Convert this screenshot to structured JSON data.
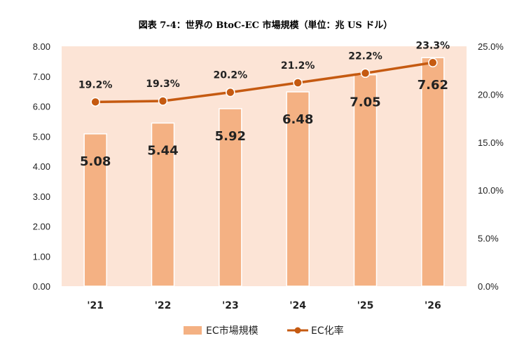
{
  "chart_data": {
    "type": "bar+line",
    "title": "図表 7-4：世界の BtoC-EC 市場規模（単位：兆 US ドル）",
    "categories": [
      "'21",
      "'22",
      "'23",
      "'24",
      "'25",
      "'26"
    ],
    "series": [
      {
        "name": "EC市場規模",
        "type": "bar",
        "axis": "left",
        "values": [
          5.08,
          5.44,
          5.92,
          6.48,
          7.05,
          7.62
        ],
        "labels": [
          "5.08",
          "5.44",
          "5.92",
          "6.48",
          "7.05",
          "7.62"
        ],
        "color": "#F4B183"
      },
      {
        "name": "EC化率",
        "type": "line",
        "axis": "right",
        "values": [
          19.2,
          19.3,
          20.2,
          21.2,
          22.2,
          23.3
        ],
        "labels": [
          "19.2%",
          "19.3%",
          "20.2%",
          "21.2%",
          "22.2%",
          "23.3%"
        ],
        "color": "#C55A11"
      }
    ],
    "y_left": {
      "min": 0,
      "max": 8,
      "ticks": [
        "0.00",
        "1.00",
        "2.00",
        "3.00",
        "4.00",
        "5.00",
        "6.00",
        "7.00",
        "8.00"
      ]
    },
    "y_right": {
      "min": 0,
      "max": 25,
      "ticks": [
        "0.0%",
        "5.0%",
        "10.0%",
        "15.0%",
        "20.0%",
        "25.0%"
      ]
    },
    "plot_background": "#FCE4D6",
    "grid": false,
    "legend_position": "bottom"
  }
}
